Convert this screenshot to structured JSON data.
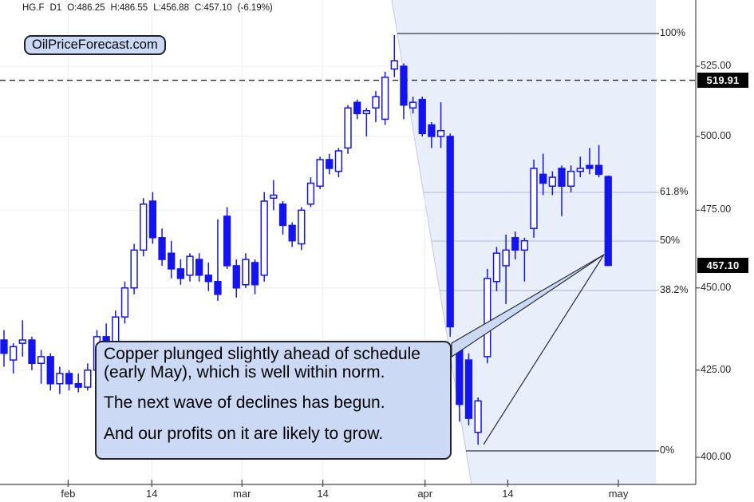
{
  "header": {
    "symbol": "HG.F",
    "interval": "D1",
    "open": "O:486.25",
    "high": "H:486.55",
    "low": "L:456.88",
    "close": "C:457.10",
    "change": "(-6.19%)"
  },
  "watermark": {
    "label": "OilPriceForecast.com"
  },
  "annotation": {
    "lines": [
      "Copper plunged slightly ahead of schedule",
      "(early May), which is well within norm.",
      "The next wave of declines has begun.",
      "And our profits on it are likely to grow."
    ]
  },
  "colors": {
    "candle": "#1414f0",
    "candle_fill_up": "#ffffff",
    "shade": "#e9eefb",
    "shade_edge": "#c2cadb",
    "grid": "#ebedf3",
    "fib_major": "#5c6168",
    "fib_minor": "#b8c3d8",
    "dashed": "#2a2a2a",
    "axis": "#43464c",
    "badge_bg": "#000000",
    "badge_fg": "#ffffff",
    "bubble_bg": "#ccd9f4",
    "bubble_border": "#23252a",
    "pointer": "#2a2d33"
  },
  "chart_data": {
    "type": "candlestick",
    "symbol": "HG.F",
    "interval": "D1",
    "price_scale": "log",
    "ylim": [
      398,
      540
    ],
    "y_axis": {
      "labels": [
        "525.00",
        "500.00",
        "475.00",
        "450.00",
        "425.00",
        "400.00"
      ],
      "dashed_level_label": "519.91",
      "last_price_label": "457.10"
    },
    "x_ticks": [
      {
        "label": "feb",
        "i": 6.9
      },
      {
        "label": "14",
        "i": 15.9
      },
      {
        "label": "mar",
        "i": 25.6
      },
      {
        "label": "14",
        "i": 34.3
      },
      {
        "label": "apr",
        "i": 45.3
      },
      {
        "label": "14",
        "i": 54.2
      },
      {
        "label": "may",
        "i": 66.1
      }
    ],
    "fib_levels": [
      {
        "label": "100%",
        "price": 537.1,
        "major": true
      },
      {
        "label": "61.8%",
        "price": 480.9,
        "major": false
      },
      {
        "label": "50%",
        "price": 464.9,
        "major": false
      },
      {
        "label": "38.2%",
        "price": 449.2,
        "major": false
      },
      {
        "label": "0%",
        "price": 401.8,
        "major": true
      }
    ],
    "candles": [
      [
        434,
        437,
        426,
        430
      ],
      [
        428,
        433,
        424,
        432
      ],
      [
        433,
        440,
        429,
        434
      ],
      [
        434,
        435,
        425,
        427
      ],
      [
        427,
        431,
        421,
        429
      ],
      [
        429,
        430,
        419,
        421
      ],
      [
        421,
        426,
        418,
        424
      ],
      [
        424,
        425,
        419,
        421
      ],
      [
        421,
        424,
        418.5,
        420
      ],
      [
        420,
        427,
        419,
        425
      ],
      [
        425,
        437,
        423,
        435
      ],
      [
        435,
        439,
        427,
        429
      ],
      [
        429,
        443,
        428,
        441
      ],
      [
        441,
        452,
        439,
        450
      ],
      [
        450,
        464,
        448,
        462
      ],
      [
        462,
        479,
        460,
        477
      ],
      [
        478,
        481,
        464,
        466
      ],
      [
        466,
        469,
        457,
        459
      ],
      [
        461,
        465,
        453,
        456
      ],
      [
        456,
        459,
        451,
        453
      ],
      [
        454,
        461,
        452,
        460
      ],
      [
        459,
        461,
        452,
        454
      ],
      [
        454,
        458,
        449,
        452
      ],
      [
        452,
        472,
        446,
        448
      ],
      [
        473,
        476,
        456,
        457
      ],
      [
        457,
        459,
        447,
        450
      ],
      [
        451,
        461,
        450,
        459
      ],
      [
        458,
        459,
        448,
        451
      ],
      [
        454,
        481,
        452,
        478
      ],
      [
        479,
        485,
        475,
        480
      ],
      [
        477,
        478,
        467,
        470
      ],
      [
        470,
        471,
        463,
        465
      ],
      [
        464,
        476,
        462,
        475
      ],
      [
        477,
        486,
        476,
        484
      ],
      [
        483,
        493,
        482,
        492
      ],
      [
        492,
        494,
        487,
        489
      ],
      [
        488,
        496,
        486,
        495
      ],
      [
        496,
        511,
        494,
        510
      ],
      [
        512,
        513,
        506,
        508
      ],
      [
        508,
        510,
        500,
        509
      ],
      [
        510,
        516,
        505,
        514
      ],
      [
        506,
        523,
        504,
        521
      ],
      [
        524,
        536.5,
        521,
        527
      ],
      [
        525,
        526,
        506,
        511
      ],
      [
        510,
        514,
        508,
        512
      ],
      [
        513,
        514,
        500,
        501
      ],
      [
        504,
        505,
        496,
        500
      ],
      [
        500,
        512,
        496,
        502
      ],
      [
        500,
        501,
        435,
        438
      ],
      [
        431,
        433,
        410,
        415
      ],
      [
        428,
        430,
        409,
        411
      ],
      [
        407,
        417,
        403.5,
        416
      ],
      [
        429,
        456,
        427,
        453
      ],
      [
        452,
        463,
        449,
        461
      ],
      [
        457,
        467,
        445,
        462
      ],
      [
        466,
        468,
        459,
        462
      ],
      [
        462,
        466,
        452,
        465
      ],
      [
        469,
        492,
        466,
        489
      ],
      [
        487,
        494,
        480,
        484
      ],
      [
        483,
        488,
        480,
        486
      ],
      [
        489,
        490,
        473,
        483
      ],
      [
        483,
        490,
        481,
        488
      ],
      [
        488,
        493,
        486,
        489
      ],
      [
        490,
        496,
        487,
        489
      ],
      [
        490,
        497,
        486,
        487
      ],
      [
        486.25,
        486.55,
        456.88,
        457.1
      ]
    ]
  }
}
